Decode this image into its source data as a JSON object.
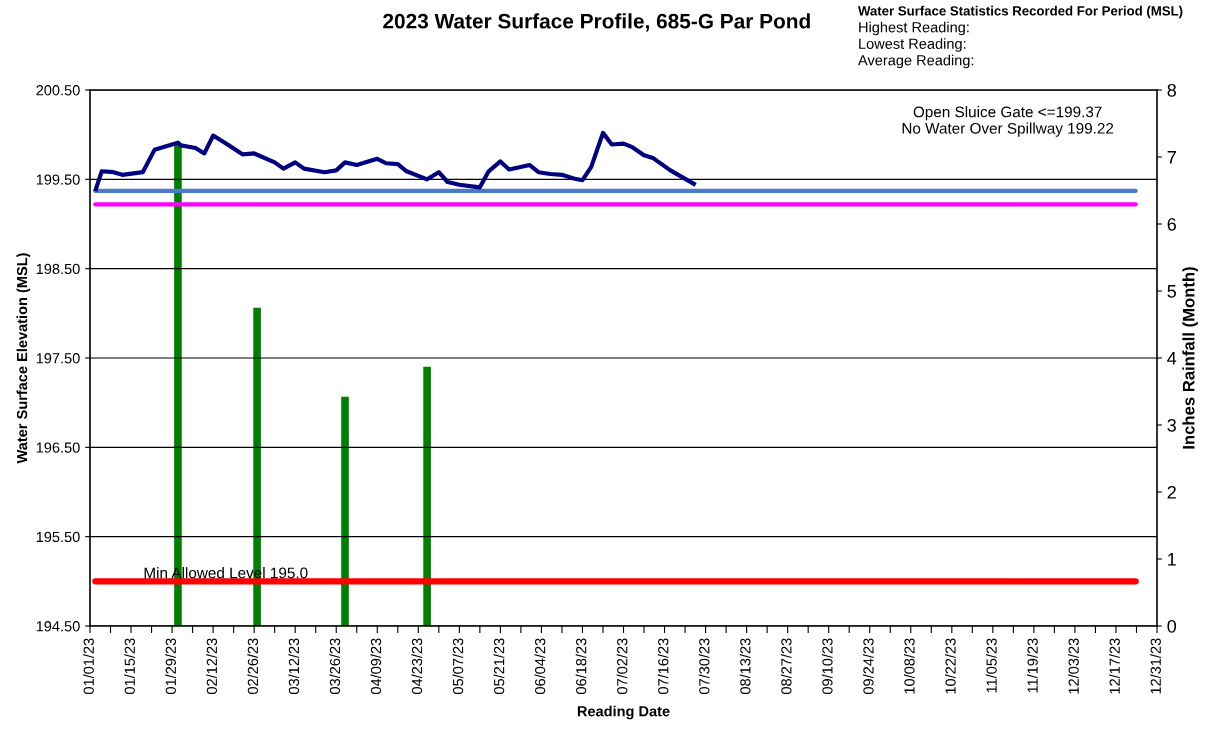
{
  "chart_data": {
    "type": "line",
    "title": "2023 Water Surface Profile, 685-G Par Pond",
    "xlabel": "Reading Date",
    "ylabel": "Water Surface Elevation (MSL)",
    "y2label": "Inches Rainfall (Month)",
    "series": [
      {
        "color": "#000080",
        "x": [
          "2023-01-03",
          "2023-01-05",
          "2023-01-09",
          "2023-01-12",
          "2023-01-19",
          "2023-01-23",
          "2023-01-31",
          "2023-02-01",
          "2023-02-06",
          "2023-02-09",
          "2023-02-12",
          "2023-02-16",
          "2023-02-22",
          "2023-02-26",
          "2023-03-05",
          "2023-03-08",
          "2023-03-12",
          "2023-03-15",
          "2023-03-22",
          "2023-03-26",
          "2023-03-29",
          "2023-04-02",
          "2023-04-09",
          "2023-04-12",
          "2023-04-16",
          "2023-04-19",
          "2023-04-26",
          "2023-04-30",
          "2023-05-03",
          "2023-05-07",
          "2023-05-14",
          "2023-05-17",
          "2023-05-21",
          "2023-05-24",
          "2023-05-31",
          "2023-06-03",
          "2023-06-07",
          "2023-06-11",
          "2023-06-15",
          "2023-06-18",
          "2023-06-21",
          "2023-06-25",
          "2023-06-28",
          "2023-07-02",
          "2023-07-05",
          "2023-07-09",
          "2023-07-12",
          "2023-07-18",
          "2023-07-26"
        ],
        "values": [
          199.39,
          199.59,
          199.58,
          199.55,
          199.58,
          199.83,
          199.91,
          199.88,
          199.85,
          199.79,
          199.99,
          199.91,
          199.78,
          199.79,
          199.69,
          199.62,
          199.69,
          199.62,
          199.58,
          199.6,
          199.69,
          199.66,
          199.73,
          199.68,
          199.67,
          199.59,
          199.5,
          199.58,
          199.47,
          199.44,
          199.41,
          199.59,
          199.7,
          199.61,
          199.66,
          199.58,
          199.56,
          199.55,
          199.51,
          199.49,
          199.64,
          200.02,
          199.89,
          199.9,
          199.86,
          199.77,
          199.74,
          199.6,
          199.45
        ]
      },
      {
        "type": "bar",
        "axis": "y2",
        "color": "#008000",
        "x": [
          "2023-01-31",
          "2023-02-27",
          "2023-03-29",
          "2023-04-26"
        ],
        "values": [
          7.18,
          4.75,
          3.42,
          3.87
        ]
      }
    ],
    "xlim": [
      "2023-01-01",
      "2023-12-31"
    ],
    "xticks": [
      {
        "value": "2023-01-01",
        "label": "01/01/23"
      },
      {
        "value": "2023-01-08",
        "label": null
      },
      {
        "value": "2023-01-15",
        "label": "01/15/23"
      },
      {
        "value": "2023-01-22",
        "label": null
      },
      {
        "value": "2023-01-29",
        "label": "01/29/23"
      },
      {
        "value": "2023-02-05",
        "label": null
      },
      {
        "value": "2023-02-12",
        "label": "02/12/23"
      },
      {
        "value": "2023-02-19",
        "label": null
      },
      {
        "value": "2023-02-26",
        "label": "02/26/23"
      },
      {
        "value": "2023-03-05",
        "label": null
      },
      {
        "value": "2023-03-12",
        "label": "03/12/23"
      },
      {
        "value": "2023-03-19",
        "label": null
      },
      {
        "value": "2023-03-26",
        "label": "03/26/23"
      },
      {
        "value": "2023-04-02",
        "label": null
      },
      {
        "value": "2023-04-09",
        "label": "04/09/23"
      },
      {
        "value": "2023-04-16",
        "label": null
      },
      {
        "value": "2023-04-23",
        "label": "04/23/23"
      },
      {
        "value": "2023-04-30",
        "label": null
      },
      {
        "value": "2023-05-07",
        "label": "05/07/23"
      },
      {
        "value": "2023-05-14",
        "label": null
      },
      {
        "value": "2023-05-21",
        "label": "05/21/23"
      },
      {
        "value": "2023-05-28",
        "label": null
      },
      {
        "value": "2023-06-04",
        "label": "06/04/23"
      },
      {
        "value": "2023-06-11",
        "label": null
      },
      {
        "value": "2023-06-18",
        "label": "06/18/23"
      },
      {
        "value": "2023-06-25",
        "label": null
      },
      {
        "value": "2023-07-02",
        "label": "07/02/23"
      },
      {
        "value": "2023-07-09",
        "label": null
      },
      {
        "value": "2023-07-16",
        "label": "07/16/23"
      },
      {
        "value": "2023-07-23",
        "label": null
      },
      {
        "value": "2023-07-30",
        "label": "07/30/23"
      },
      {
        "value": "2023-08-06",
        "label": null
      },
      {
        "value": "2023-08-13",
        "label": "08/13/23"
      },
      {
        "value": "2023-08-20",
        "label": null
      },
      {
        "value": "2023-08-27",
        "label": "08/27/23"
      },
      {
        "value": "2023-09-03",
        "label": null
      },
      {
        "value": "2023-09-10",
        "label": "09/10/23"
      },
      {
        "value": "2023-09-17",
        "label": null
      },
      {
        "value": "2023-09-24",
        "label": "09/24/23"
      },
      {
        "value": "2023-10-01",
        "label": null
      },
      {
        "value": "2023-10-08",
        "label": "10/08/23"
      },
      {
        "value": "2023-10-15",
        "label": null
      },
      {
        "value": "2023-10-22",
        "label": "10/22/23"
      },
      {
        "value": "2023-10-29",
        "label": null
      },
      {
        "value": "2023-11-05",
        "label": "11/05/23"
      },
      {
        "value": "2023-11-12",
        "label": null
      },
      {
        "value": "2023-11-19",
        "label": "11/19/23"
      },
      {
        "value": "2023-11-26",
        "label": null
      },
      {
        "value": "2023-12-03",
        "label": "12/03/23"
      },
      {
        "value": "2023-12-10",
        "label": null
      },
      {
        "value": "2023-12-17",
        "label": "12/17/23"
      },
      {
        "value": "2023-12-24",
        "label": null
      },
      {
        "value": "2023-12-31",
        "label": "12/31/23"
      }
    ],
    "ylim": [
      194.5,
      200.5
    ],
    "yticks": [
      {
        "value": 194.5,
        "label": "194.50"
      },
      {
        "value": 195.5,
        "label": "195.50"
      },
      {
        "value": 196.5,
        "label": "196.50"
      },
      {
        "value": 197.5,
        "label": "197.50"
      },
      {
        "value": 198.5,
        "label": "198.50"
      },
      {
        "value": 199.5,
        "label": "199.50"
      },
      {
        "value": 200.5,
        "label": "200.50"
      }
    ],
    "y2lim": [
      0,
      8
    ],
    "y2ticks": [
      0,
      1,
      2,
      3,
      4,
      5,
      6,
      7,
      8
    ],
    "ref_lines": [
      {
        "axis": "y",
        "value": 199.37,
        "color": "#4a7ac8"
      },
      {
        "axis": "y",
        "value": 199.22,
        "color": "#ff00ff"
      },
      {
        "axis": "y",
        "value": 195.0,
        "color": "#ff0000",
        "label": "Min Allowed Level 195.0"
      }
    ],
    "annotations": [
      "Water Surface Statistics Recorded For Period (MSL)",
      "Highest Reading:",
      "Lowest Reading:",
      "Average Reading:",
      "Open Sluice Gate <=199.37\nNo Water Over Spillway 199.22"
    ],
    "grid": "y",
    "legend": false,
    "marker": "none",
    "line_style": "solid"
  }
}
